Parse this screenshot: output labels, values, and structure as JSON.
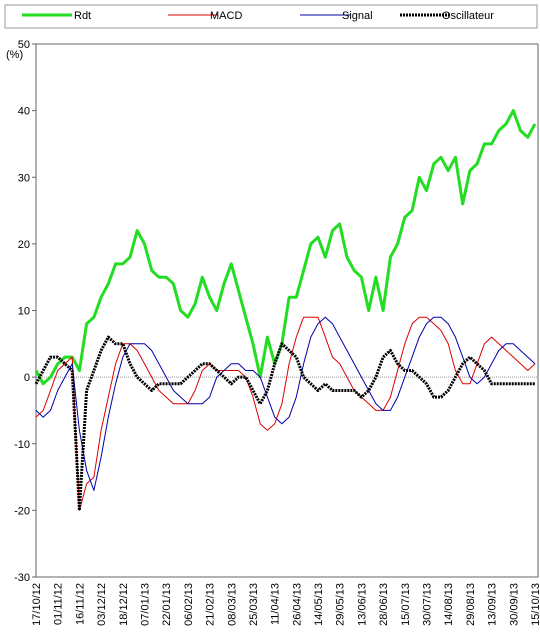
{
  "chart_data": {
    "type": "line",
    "y_label": "(%)",
    "ylim": [
      -30,
      50
    ],
    "yticks": [
      -30,
      -20,
      -10,
      0,
      10,
      20,
      30,
      40,
      50
    ],
    "categories": [
      "17/10/12",
      null,
      null,
      "01/11/12",
      null,
      null,
      "16/11/12",
      null,
      null,
      "03/12/12",
      null,
      null,
      "18/12/12",
      null,
      null,
      "07/01/13",
      null,
      null,
      "22/01/13",
      null,
      null,
      "06/02/13",
      null,
      null,
      "21/02/13",
      null,
      null,
      "08/03/13",
      null,
      null,
      "25/03/13",
      null,
      null,
      "11/04/13",
      null,
      null,
      "26/04/13",
      null,
      null,
      "14/05/13",
      null,
      null,
      "29/05/13",
      null,
      null,
      "13/06/13",
      null,
      null,
      "28/06/13",
      null,
      null,
      "15/07/13",
      null,
      null,
      "30/07/13",
      null,
      null,
      "14/08/13",
      null,
      null,
      "29/08/13",
      null,
      null,
      "13/09/13",
      null,
      null,
      "30/09/13",
      null,
      null,
      "15/10/13"
    ],
    "series": [
      {
        "name": "Rdt",
        "color": "#22dd22",
        "values": [
          1,
          -1,
          0,
          2,
          3,
          3,
          1,
          8,
          9,
          12,
          14,
          17,
          17,
          18,
          22,
          20,
          16,
          15,
          15,
          14,
          10,
          9,
          11,
          15,
          12,
          10,
          14,
          17,
          13,
          9,
          5,
          0,
          6,
          2,
          5,
          12,
          12,
          16,
          20,
          21,
          18,
          22,
          23,
          18,
          16,
          15,
          10,
          15,
          10,
          18,
          20,
          24,
          25,
          30,
          28,
          32,
          33,
          31,
          33,
          26,
          31,
          32,
          35,
          35,
          37,
          38,
          40,
          37,
          36,
          38
        ]
      },
      {
        "name": "MACD",
        "color": "#dd0000",
        "values": [
          -6,
          -5,
          -2,
          1,
          2,
          3,
          -20,
          -16,
          -15,
          -8,
          -3,
          2,
          5,
          5,
          4,
          2,
          0,
          -2,
          -3,
          -4,
          -4,
          -4,
          -2,
          1,
          2,
          1,
          1,
          1,
          1,
          0,
          -3,
          -7,
          -8,
          -7,
          -4,
          2,
          6,
          9,
          9,
          9,
          6,
          3,
          2,
          0,
          -2,
          -3,
          -4,
          -5,
          -5,
          -3,
          1,
          5,
          8,
          9,
          9,
          8,
          7,
          5,
          1,
          -1,
          -1,
          2,
          5,
          6,
          5,
          4,
          3,
          2,
          1,
          2
        ]
      },
      {
        "name": "Signal",
        "color": "#0000aa",
        "values": [
          -5,
          -6,
          -5,
          -2,
          0,
          2,
          -8,
          -14,
          -17,
          -12,
          -6,
          -1,
          3,
          5,
          5,
          5,
          4,
          2,
          0,
          -2,
          -3,
          -4,
          -4,
          -4,
          -3,
          0,
          1,
          2,
          2,
          1,
          1,
          0,
          -3,
          -6,
          -7,
          -6,
          -3,
          2,
          6,
          8,
          9,
          8,
          6,
          4,
          2,
          0,
          -2,
          -4,
          -5,
          -5,
          -3,
          0,
          3,
          6,
          8,
          9,
          9,
          8,
          6,
          3,
          0,
          -1,
          0,
          2,
          4,
          5,
          5,
          4,
          3,
          2
        ]
      },
      {
        "name": "Oscillateur",
        "color": "#000000",
        "values": [
          -1,
          1,
          3,
          3,
          2,
          1,
          -20,
          -2,
          1,
          4,
          6,
          5,
          5,
          2,
          0,
          -1,
          -2,
          -1,
          -1,
          -1,
          -1,
          0,
          1,
          2,
          2,
          1,
          0,
          -1,
          0,
          0,
          -2,
          -4,
          -2,
          2,
          5,
          4,
          3,
          0,
          -1,
          -2,
          -1,
          -2,
          -2,
          -2,
          -2,
          -3,
          -2,
          0,
          3,
          4,
          2,
          1,
          1,
          0,
          -1,
          -3,
          -3,
          -2,
          0,
          2,
          3,
          2,
          1,
          -1,
          -1,
          -1,
          -1,
          -1,
          -1,
          -1
        ]
      }
    ]
  }
}
